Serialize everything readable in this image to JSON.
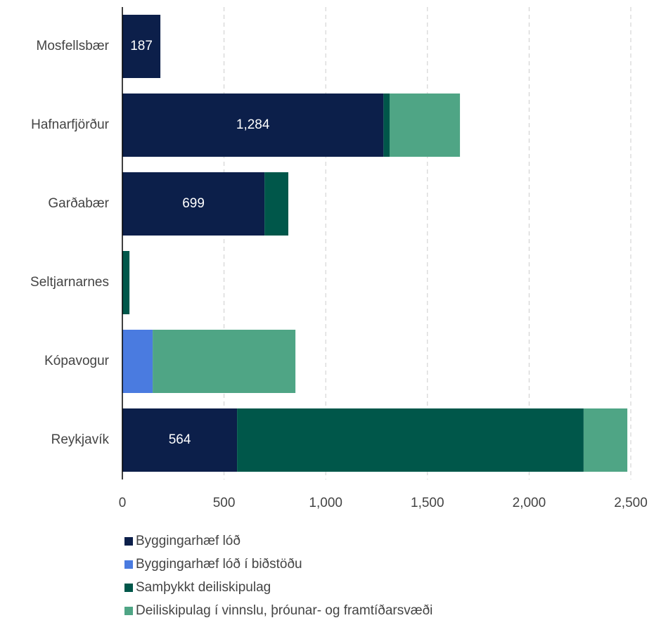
{
  "chart_data": {
    "type": "stacked-barh",
    "categories": [
      "Mosfellsbær",
      "Hafnarfjörður",
      "Garðabær",
      "Seltjarnarnes",
      "Kópavogur",
      "Reykjavík"
    ],
    "series": [
      {
        "name": "Byggingarhæf lóð",
        "color": "#0c1f4a",
        "values": [
          187,
          1284,
          699,
          0,
          0,
          564
        ],
        "value_labels": [
          "187",
          "1,284",
          "699",
          null,
          null,
          "564"
        ]
      },
      {
        "name": "Byggingarhæf lóð í biðstöðu",
        "color": "#4a7be0",
        "values": [
          0,
          0,
          0,
          0,
          149,
          0
        ]
      },
      {
        "name": "Samþykkt deiliskipulag",
        "color": "#00574a",
        "values": [
          0,
          30,
          117,
          35,
          0,
          1704
        ]
      },
      {
        "name": "Deiliskipulag í vinnslu, þróunar- og framtíðarsvæði",
        "color": "#4fa585",
        "values": [
          0,
          346,
          0,
          0,
          702,
          215
        ]
      }
    ],
    "xlim": [
      0,
      2500
    ],
    "xticks": [
      0,
      500,
      {
        "value": 1000,
        "label": "1,000"
      },
      {
        "value": 1500,
        "label": "1,500"
      },
      {
        "value": 2000,
        "label": "2,000"
      },
      {
        "value": 2500,
        "label": "2,500"
      }
    ],
    "grid": true,
    "legend": "bottom"
  }
}
